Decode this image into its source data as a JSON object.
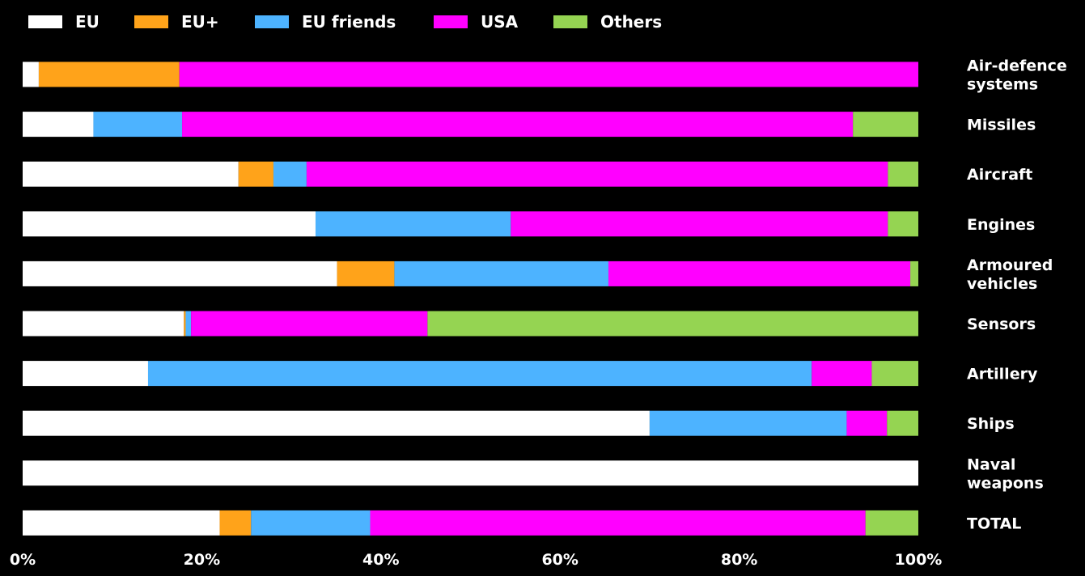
{
  "chart_data": {
    "type": "bar",
    "orientation": "horizontal",
    "stacked": true,
    "categories": [
      "Air-defence systems",
      "Missiles",
      "Aircraft",
      "Engines",
      "Armoured vehicles",
      "Sensors",
      "Artillery",
      "Ships",
      "Naval weapons",
      "TOTAL"
    ],
    "category_lines": [
      [
        "Air-defence",
        "systems"
      ],
      [
        "Missiles"
      ],
      [
        "Aircraft"
      ],
      [
        "Engines"
      ],
      [
        "Armoured",
        "vehicles"
      ],
      [
        "Sensors"
      ],
      [
        "Artillery"
      ],
      [
        "Ships"
      ],
      [
        "Naval",
        "weapons"
      ],
      [
        "TOTAL"
      ]
    ],
    "series": [
      {
        "name": "EU",
        "color": "#ffffff",
        "values": [
          1.8,
          7.9,
          24.1,
          32.7,
          35.1,
          18.0,
          14.0,
          70.0,
          100.0,
          22.0
        ]
      },
      {
        "name": "EU+",
        "color": "#ffa31a",
        "values": [
          15.7,
          0.0,
          3.9,
          0.0,
          6.4,
          0.2,
          0.0,
          0.0,
          0.0,
          3.5
        ]
      },
      {
        "name": "EU friends",
        "color": "#4db3ff",
        "values": [
          0.0,
          9.9,
          3.7,
          21.8,
          23.9,
          0.6,
          74.1,
          22.0,
          0.0,
          13.3
        ]
      },
      {
        "name": "USA",
        "color": "#ff00ff",
        "values": [
          82.5,
          74.9,
          64.9,
          42.1,
          33.7,
          26.4,
          6.7,
          4.5,
          0.0,
          55.3
        ]
      },
      {
        "name": "Others",
        "color": "#95d452",
        "values": [
          0.0,
          7.3,
          3.4,
          3.4,
          0.9,
          54.8,
          5.2,
          3.5,
          0.0,
          5.9
        ]
      }
    ],
    "x_ticks": [
      "0%",
      "20%",
      "40%",
      "60%",
      "80%",
      "100%"
    ],
    "xlim": [
      0,
      100
    ],
    "grid": false,
    "legend_position": "top-left",
    "title": "",
    "xlabel": "",
    "ylabel": ""
  }
}
